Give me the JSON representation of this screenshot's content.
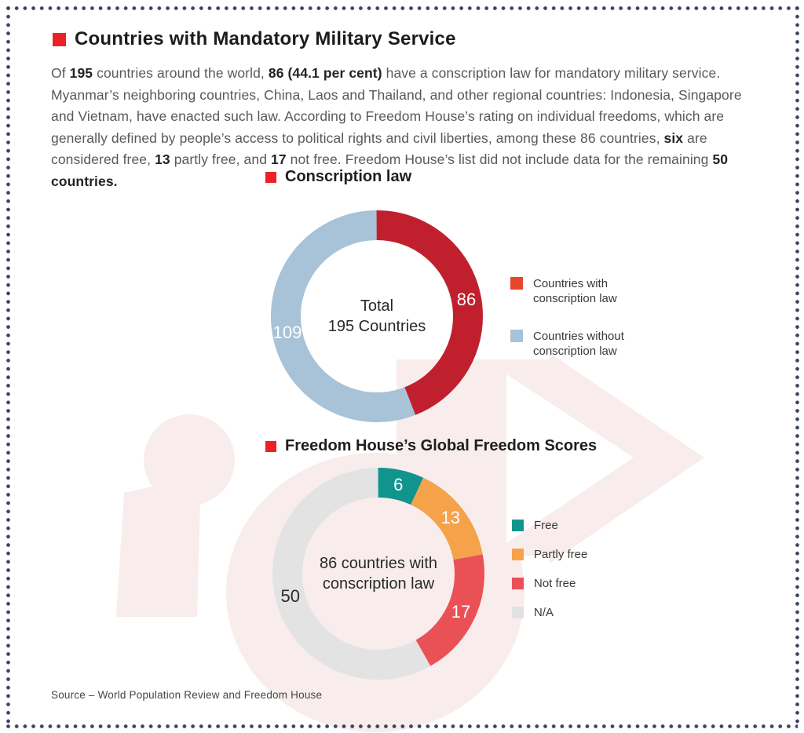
{
  "header": {
    "title": "Countries with Mandatory Military Service"
  },
  "colors": {
    "accent_red": "#ec2027",
    "border_navy": "#3d4660",
    "watermark_pink": "#f8edec"
  },
  "intro": {
    "segments": [
      {
        "text": "Of ",
        "bold": false
      },
      {
        "text": "195",
        "bold": true
      },
      {
        "text": " countries around the world, ",
        "bold": false
      },
      {
        "text": "86 (44.1 per cent)",
        "bold": true
      },
      {
        "text": " have a conscription law for mandatory military service. Myanmar’s neighboring countries, China, Laos and Thailand, and other regional countries: Indonesia, Singapore and Vietnam, have enacted such law. According to Freedom House’s rating on individual freedoms, which are generally defined by people’s access to political rights and civil liberties, among these 86 countries, ",
        "bold": false
      },
      {
        "text": "six",
        "bold": true
      },
      {
        "text": " are considered free, ",
        "bold": false
      },
      {
        "text": "13",
        "bold": true
      },
      {
        "text": " partly free, and ",
        "bold": false
      },
      {
        "text": "17",
        "bold": true
      },
      {
        "text": " not free. Freedom House’s list did not include data for the remaining ",
        "bold": false
      },
      {
        "text": "50 countries.",
        "bold": true
      }
    ]
  },
  "chart1": {
    "heading": "Conscription law",
    "legend": {
      "items": [
        {
          "label": "Countries with conscription law",
          "color": "#e8462c"
        },
        {
          "label": "Countries without conscription law",
          "color": "#a8c2d8"
        }
      ]
    }
  },
  "chart2": {
    "heading": "Freedom House’s Global Freedom Scores",
    "legend": {
      "items": [
        {
          "label": "Free",
          "color": "#12948e"
        },
        {
          "label": "Partly free",
          "color": "#f5a24b"
        },
        {
          "label": "Not free",
          "color": "#ea5157"
        },
        {
          "label": "N/A",
          "color": "#e1e1e1"
        }
      ]
    }
  },
  "source": "Source – World Population Review and Freedom House",
  "chart_data": [
    {
      "type": "donut",
      "title": "Conscription law",
      "center_label": "Total\n195 Countries",
      "categories": [
        "Countries with conscription law",
        "Countries without conscription law"
      ],
      "values": [
        86,
        109
      ],
      "total": 195,
      "colors": [
        "#c0202e",
        "#a8c2d8"
      ],
      "value_label_colors": [
        "#ffffff",
        "#ffffff"
      ],
      "start_angle_deg": 0,
      "direction": "clockwise",
      "legend_position": "right"
    },
    {
      "type": "donut",
      "title": "Freedom House’s Global Freedom Scores",
      "center_label": "86 countries with\nconscription law",
      "categories": [
        "Free",
        "Partly free",
        "Not free",
        "N/A"
      ],
      "values": [
        6,
        13,
        17,
        50
      ],
      "total": 86,
      "colors": [
        "#12948e",
        "#f5a24b",
        "#ea5157",
        "#e3e3e4"
      ],
      "value_label_colors": [
        "#ffffff",
        "#ffffff",
        "#ffffff",
        "#2b2b2d"
      ],
      "start_angle_deg": 0,
      "direction": "clockwise",
      "legend_position": "right"
    }
  ]
}
